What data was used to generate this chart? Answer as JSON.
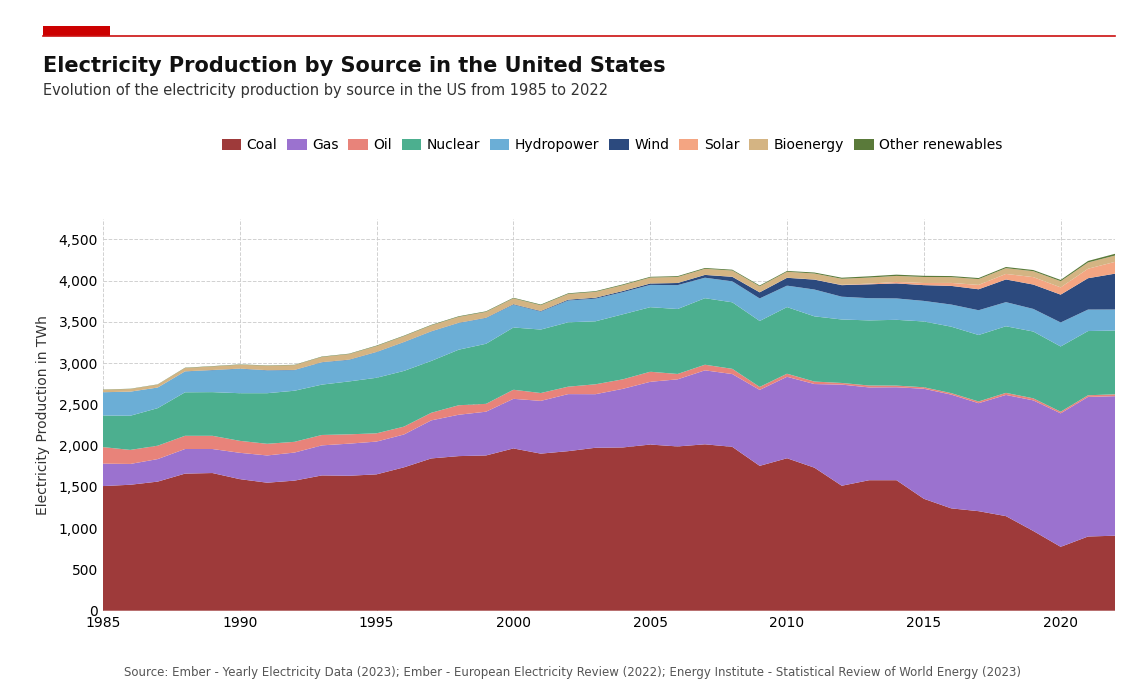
{
  "title": "Electricity Production by Source in the United States",
  "subtitle": "Evolution of the electricity production by source in the US from 1985 to 2022",
  "ylabel": "Electricity Production in TWh",
  "source": "Source: Ember - Yearly Electricity Data (2023); Ember - European Electricity Review (2022); Energy Institute - Statistical Review of World Energy (2023)",
  "years": [
    1985,
    1986,
    1987,
    1988,
    1989,
    1990,
    1991,
    1992,
    1993,
    1994,
    1995,
    1996,
    1997,
    1998,
    1999,
    2000,
    2001,
    2002,
    2003,
    2004,
    2005,
    2006,
    2007,
    2008,
    2009,
    2010,
    2011,
    2012,
    2013,
    2014,
    2015,
    2016,
    2017,
    2018,
    2019,
    2020,
    2021,
    2022
  ],
  "series": {
    "Coal": [
      1510,
      1526,
      1564,
      1661,
      1668,
      1594,
      1551,
      1576,
      1639,
      1635,
      1652,
      1737,
      1845,
      1873,
      1881,
      1966,
      1903,
      1933,
      1974,
      1978,
      2013,
      1990,
      2016,
      1985,
      1755,
      1847,
      1733,
      1514,
      1581,
      1581,
      1356,
      1240,
      1206,
      1146,
      966,
      774,
      899,
      909
    ],
    "Gas": [
      272,
      252,
      273,
      298,
      291,
      319,
      330,
      340,
      364,
      389,
      397,
      398,
      461,
      501,
      530,
      601,
      639,
      691,
      649,
      710,
      760,
      813,
      896,
      882,
      920,
      987,
      1013,
      1225,
      1124,
      1126,
      1333,
      1378,
      1308,
      1468,
      1582,
      1617,
      1691,
      1690
    ],
    "Oil": [
      200,
      170,
      162,
      160,
      160,
      145,
      141,
      130,
      126,
      113,
      100,
      95,
      92,
      115,
      95,
      110,
      95,
      90,
      120,
      115,
      122,
      65,
      68,
      63,
      36,
      37,
      30,
      20,
      23,
      20,
      18,
      18,
      21,
      25,
      25,
      20,
      20,
      23
    ],
    "Nuclear": [
      383,
      414,
      455,
      527,
      529,
      577,
      613,
      619,
      610,
      641,
      673,
      675,
      628,
      673,
      728,
      754,
      769,
      780,
      763,
      788,
      782,
      787,
      806,
      806,
      799,
      807,
      790,
      769,
      789,
      797,
      797,
      805,
      805,
      807,
      809,
      790,
      778,
      772
    ],
    "Hydropower": [
      281,
      291,
      249,
      252,
      265,
      295,
      276,
      249,
      269,
      260,
      310,
      347,
      356,
      323,
      311,
      276,
      218,
      264,
      275,
      268,
      270,
      289,
      248,
      254,
      273,
      260,
      325,
      276,
      269,
      259,
      249,
      268,
      300,
      292,
      274,
      291,
      260,
      255
    ],
    "Wind": [
      1,
      1,
      1,
      2,
      3,
      3,
      3,
      3,
      3,
      4,
      3,
      3,
      3,
      3,
      4,
      6,
      7,
      10,
      11,
      14,
      17,
      26,
      34,
      55,
      74,
      95,
      120,
      140,
      168,
      182,
      191,
      226,
      254,
      275,
      295,
      337,
      380,
      435
    ],
    "Solar": [
      0,
      0,
      0,
      0,
      0,
      0,
      0,
      0,
      0,
      0,
      0,
      0,
      0,
      0,
      0,
      0,
      0,
      0,
      0,
      0,
      0,
      0,
      1,
      2,
      1,
      1,
      2,
      4,
      9,
      18,
      26,
      36,
      53,
      67,
      90,
      88,
      115,
      143
    ],
    "Bioenergy": [
      30,
      32,
      35,
      40,
      43,
      47,
      54,
      58,
      63,
      67,
      71,
      71,
      72,
      72,
      71,
      71,
      70,
      69,
      71,
      71,
      72,
      73,
      73,
      74,
      72,
      72,
      72,
      73,
      73,
      73,
      73,
      70,
      70,
      70,
      72,
      75,
      76,
      77
    ],
    "Other renewables": [
      3,
      3,
      3,
      4,
      4,
      4,
      4,
      4,
      5,
      5,
      6,
      6,
      6,
      7,
      7,
      7,
      8,
      8,
      8,
      9,
      9,
      10,
      10,
      10,
      10,
      10,
      12,
      13,
      15,
      15,
      14,
      13,
      13,
      14,
      14,
      15,
      18,
      21
    ]
  },
  "colors": {
    "Coal": "#9e3a3a",
    "Gas": "#9b72cf",
    "Oil": "#e8837a",
    "Nuclear": "#4caf8f",
    "Hydropower": "#6baed6",
    "Wind": "#2c4a7e",
    "Solar": "#f4a582",
    "Bioenergy": "#d4b483",
    "Other renewables": "#5a7a3a"
  },
  "legend_order": [
    "Coal",
    "Gas",
    "Oil",
    "Nuclear",
    "Hydropower",
    "Wind",
    "Solar",
    "Bioenergy",
    "Other renewables"
  ],
  "ylim": [
    0,
    4750
  ],
  "yticks": [
    0,
    500,
    1000,
    1500,
    2000,
    2500,
    3000,
    3500,
    4000,
    4500
  ],
  "background_color": "#ffffff",
  "grid_color": "#cccccc",
  "accent_color": "#cc0000",
  "accent_line_color": "#cc1111",
  "title_color": "#111111",
  "subtitle_color": "#333333",
  "source_color": "#555555",
  "title_fontsize": 15,
  "subtitle_fontsize": 10.5,
  "legend_fontsize": 10,
  "axis_fontsize": 10,
  "source_fontsize": 8.5
}
